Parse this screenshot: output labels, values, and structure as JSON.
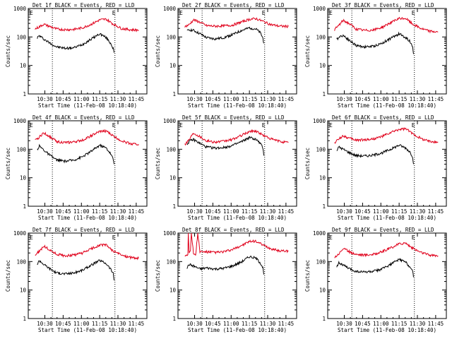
{
  "figure": {
    "start_time_prefix": "Start Time",
    "start_time_value": "(11-Feb-08 10:18:40)",
    "colors": {
      "events": "#000000",
      "lld": "#e0001b"
    }
  },
  "chart_data": [
    {
      "type": "line",
      "title": "Det 1f BLACK = Events, RED = LLD",
      "xlabel": "Start Time (11-Feb-08 10:18:40)",
      "ylabel": "Counts/sec",
      "yscale": "log",
      "ylim": [
        1,
        1000
      ],
      "xlim_minutes": [
        10.0,
        58.0
      ],
      "x_ticks": [
        "10:30",
        "10:45",
        "11:00",
        "11:15",
        "11:30",
        "11:45"
      ],
      "y_ticks": [
        "1",
        "10",
        "100",
        "1000"
      ],
      "markers_minutes": [
        18.0,
        47.0
      ],
      "flag_labels": [
        "E",
        "E"
      ],
      "series": [
        {
          "name": "Events",
          "x": [
            11,
            12,
            14,
            17,
            20,
            24,
            28,
            32,
            36,
            40,
            43,
            45,
            46.2,
            46.6
          ],
          "values": [
            95,
            110,
            85,
            60,
            45,
            40,
            42,
            55,
            85,
            130,
            95,
            60,
            40,
            28
          ]
        },
        {
          "name": "LLD",
          "x": [
            10,
            12,
            14,
            17,
            20,
            24,
            28,
            32,
            36,
            40,
            43,
            46,
            50,
            54,
            58
          ],
          "values": [
            190,
            230,
            280,
            230,
            190,
            180,
            185,
            210,
            280,
            400,
            420,
            290,
            200,
            180,
            175
          ]
        }
      ]
    },
    {
      "type": "line",
      "title": "Det 2f BLACK = Events, RED = LLD",
      "xlabel": "Start Time (11-Feb-08 10:18:40)",
      "ylabel": "Counts/sec",
      "yscale": "log",
      "ylim": [
        1,
        1000
      ],
      "xlim_minutes": [
        10.0,
        58.0
      ],
      "x_ticks": [
        "10:30",
        "10:45",
        "11:00",
        "11:15",
        "11:30",
        "11:45"
      ],
      "y_ticks": [
        "1",
        "10",
        "100",
        "1000"
      ],
      "markers_minutes": [
        18.0,
        47.0
      ],
      "flag_labels": [
        "E",
        "E"
      ],
      "series": [
        {
          "name": "Events",
          "x": [
            11,
            12,
            14,
            17,
            20,
            24,
            28,
            32,
            36,
            40,
            43,
            45,
            46.2,
            46.6
          ],
          "values": [
            160,
            180,
            170,
            130,
            95,
            85,
            95,
            120,
            165,
            210,
            190,
            140,
            90,
            60
          ]
        },
        {
          "name": "LLD",
          "x": [
            10,
            12,
            14,
            17,
            20,
            24,
            28,
            32,
            36,
            40,
            43,
            46,
            50,
            54,
            58
          ],
          "values": [
            230,
            270,
            400,
            330,
            250,
            240,
            245,
            260,
            330,
            420,
            440,
            360,
            270,
            240,
            235
          ]
        }
      ]
    },
    {
      "type": "line",
      "title": "Det 3f BLACK = Events, RED = LLD",
      "xlabel": "Start Time (11-Feb-08 10:18:40)",
      "ylabel": "Counts/sec",
      "yscale": "log",
      "ylim": [
        1,
        1000
      ],
      "xlim_minutes": [
        10.0,
        58.0
      ],
      "x_ticks": [
        "10:30",
        "10:45",
        "11:00",
        "11:15",
        "11:30",
        "11:45"
      ],
      "y_ticks": [
        "1",
        "10",
        "100",
        "1000"
      ],
      "markers_minutes": [
        18.0,
        47.0
      ],
      "flag_labels": [
        "E",
        "E"
      ],
      "series": [
        {
          "name": "Events",
          "x": [
            11,
            12,
            14,
            17,
            20,
            24,
            28,
            32,
            36,
            40,
            43,
            45,
            46.2,
            46.6
          ],
          "values": [
            80,
            100,
            115,
            75,
            50,
            45,
            47,
            60,
            90,
            130,
            95,
            70,
            45,
            25
          ]
        },
        {
          "name": "LLD",
          "x": [
            10,
            12,
            14,
            17,
            20,
            24,
            28,
            32,
            36,
            40,
            43,
            46,
            50,
            54,
            58
          ],
          "values": [
            180,
            260,
            380,
            290,
            190,
            170,
            175,
            220,
            320,
            440,
            450,
            290,
            200,
            160,
            150
          ]
        }
      ]
    },
    {
      "type": "line",
      "title": "Det 4f BLACK = Events, RED = LLD",
      "xlabel": "Start Time (11-Feb-08 10:18:40)",
      "ylabel": "Counts/sec",
      "yscale": "log",
      "ylim": [
        1,
        1000
      ],
      "xlim_minutes": [
        10.0,
        58.0
      ],
      "x_ticks": [
        "10:30",
        "10:45",
        "11:00",
        "11:15",
        "11:30",
        "11:45"
      ],
      "y_ticks": [
        "1",
        "10",
        "100",
        "1000"
      ],
      "markers_minutes": [
        18.0,
        47.0
      ],
      "flag_labels": [
        "E",
        "E"
      ],
      "series": [
        {
          "name": "Events",
          "x": [
            11,
            12,
            14,
            17,
            20,
            24,
            28,
            32,
            36,
            40,
            43,
            45,
            46.2,
            46.6
          ],
          "values": [
            100,
            130,
            95,
            60,
            42,
            38,
            42,
            55,
            85,
            140,
            110,
            70,
            45,
            30
          ]
        },
        {
          "name": "LLD",
          "x": [
            10,
            12,
            14,
            17,
            20,
            24,
            28,
            32,
            36,
            40,
            43,
            46,
            50,
            54,
            58
          ],
          "values": [
            200,
            270,
            380,
            270,
            190,
            170,
            180,
            210,
            300,
            420,
            440,
            300,
            200,
            160,
            150
          ]
        }
      ]
    },
    {
      "type": "line",
      "title": "Det 5f BLACK = Events, RED = LLD",
      "xlabel": "Start Time (11-Feb-08 10:18:40)",
      "ylabel": "Counts/sec",
      "yscale": "log",
      "ylim": [
        1,
        1000
      ],
      "xlim_minutes": [
        10.0,
        58.0
      ],
      "x_ticks": [
        "10:30",
        "10:45",
        "11:00",
        "11:15",
        "11:30",
        "11:45"
      ],
      "y_ticks": [
        "1",
        "10",
        "100",
        "1000"
      ],
      "markers_minutes": [
        18.0,
        47.0
      ],
      "flag_labels": [
        "E",
        "E"
      ],
      "series": [
        {
          "name": "Events",
          "x": [
            11,
            12,
            14,
            17,
            20,
            24,
            28,
            32,
            36,
            40,
            43,
            45,
            46.2,
            46.6
          ],
          "values": [
            150,
            190,
            220,
            160,
            120,
            110,
            115,
            135,
            180,
            260,
            220,
            160,
            110,
            60
          ]
        },
        {
          "name": "LLD",
          "x": [
            10,
            12,
            14,
            17,
            20,
            24,
            28,
            32,
            36,
            40,
            43,
            46,
            50,
            54,
            58
          ],
          "values": [
            150,
            220,
            380,
            280,
            200,
            180,
            190,
            220,
            300,
            420,
            440,
            320,
            230,
            190,
            170
          ]
        }
      ]
    },
    {
      "type": "line",
      "title": "Det 6f BLACK = Events, RED = LLD",
      "xlabel": "Start Time (11-Feb-08 10:18:40)",
      "ylabel": "Counts/sec",
      "yscale": "log",
      "ylim": [
        1,
        1000
      ],
      "xlim_minutes": [
        10.0,
        58.0
      ],
      "x_ticks": [
        "10:30",
        "10:45",
        "11:00",
        "11:15",
        "11:30",
        "11:45"
      ],
      "y_ticks": [
        "1",
        "10",
        "100",
        "1000"
      ],
      "markers_minutes": [
        18.0,
        47.0
      ],
      "flag_labels": [
        "E",
        "E"
      ],
      "series": [
        {
          "name": "Events",
          "x": [
            11,
            12,
            14,
            17,
            20,
            24,
            28,
            32,
            36,
            40,
            43,
            45,
            46.2,
            46.6
          ],
          "values": [
            90,
            120,
            100,
            75,
            60,
            58,
            62,
            75,
            100,
            140,
            110,
            80,
            55,
            30
          ]
        },
        {
          "name": "LLD",
          "x": [
            10,
            12,
            14,
            17,
            20,
            24,
            28,
            32,
            36,
            40,
            43,
            46,
            50,
            54,
            58
          ],
          "values": [
            170,
            230,
            300,
            240,
            210,
            215,
            230,
            280,
            380,
            500,
            520,
            360,
            240,
            190,
            180
          ]
        }
      ]
    },
    {
      "type": "line",
      "title": "Det 7f BLACK = Events, RED = LLD",
      "xlabel": "Start Time (11-Feb-08 10:18:40)",
      "ylabel": "Counts/sec",
      "yscale": "log",
      "ylim": [
        1,
        1000
      ],
      "xlim_minutes": [
        10.0,
        58.0
      ],
      "x_ticks": [
        "10:30",
        "10:45",
        "11:00",
        "11:15",
        "11:30",
        "11:45"
      ],
      "y_ticks": [
        "1",
        "10",
        "100",
        "1000"
      ],
      "markers_minutes": [
        18.0,
        47.0
      ],
      "flag_labels": [
        "E",
        "E"
      ],
      "series": [
        {
          "name": "Events",
          "x": [
            11,
            12,
            14,
            17,
            20,
            24,
            28,
            32,
            36,
            40,
            43,
            45,
            46.2,
            46.6
          ],
          "values": [
            80,
            110,
            80,
            55,
            40,
            37,
            40,
            50,
            75,
            110,
            85,
            55,
            38,
            22
          ]
        },
        {
          "name": "LLD",
          "x": [
            10,
            12,
            14,
            17,
            20,
            24,
            28,
            32,
            36,
            40,
            43,
            46,
            50,
            54,
            58
          ],
          "values": [
            170,
            230,
            350,
            250,
            180,
            160,
            170,
            200,
            280,
            380,
            380,
            240,
            170,
            140,
            130
          ]
        }
      ]
    },
    {
      "type": "line",
      "title": "Det 8f BLACK = Events, RED = LLD",
      "xlabel": "Start Time (11-Feb-08 10:18:40)",
      "ylabel": "Counts/sec",
      "yscale": "log",
      "ylim": [
        1,
        1000
      ],
      "xlim_minutes": [
        10.0,
        58.0
      ],
      "x_ticks": [
        "10:30",
        "10:45",
        "11:00",
        "11:15",
        "11:30",
        "11:45"
      ],
      "y_ticks": [
        "1",
        "10",
        "100",
        "1000"
      ],
      "markers_minutes": [
        18.0,
        47.0
      ],
      "flag_labels": [
        "",
        ""
      ],
      "series": [
        {
          "name": "Events",
          "x": [
            11,
            12,
            14,
            17,
            20,
            24,
            28,
            32,
            36,
            40,
            43,
            45,
            46.2,
            46.6
          ],
          "values": [
            60,
            80,
            70,
            55,
            60,
            55,
            58,
            70,
            95,
            150,
            130,
            90,
            60,
            35
          ]
        },
        {
          "name": "LLD",
          "x": [
            10,
            11.4,
            11.6,
            12,
            12.6,
            13,
            14,
            14.6,
            15,
            16,
            17,
            20,
            24,
            28,
            32,
            36,
            40,
            43,
            46,
            50,
            54,
            58
          ],
          "values": [
            160,
            180,
            1000,
            220,
            260,
            1000,
            200,
            170,
            170,
            1000,
            220,
            220,
            210,
            220,
            260,
            360,
            500,
            520,
            380,
            280,
            240,
            230
          ]
        }
      ]
    },
    {
      "type": "line",
      "title": "Det 9f BLACK = Events, RED = LLD",
      "xlabel": "Start Time (11-Feb-08 10:18:40)",
      "ylabel": "Counts/sec",
      "yscale": "log",
      "ylim": [
        1,
        1000
      ],
      "xlim_minutes": [
        10.0,
        58.0
      ],
      "x_ticks": [
        "10:30",
        "10:45",
        "11:00",
        "11:15",
        "11:30",
        "11:45"
      ],
      "y_ticks": [
        "1",
        "10",
        "100",
        "1000"
      ],
      "markers_minutes": [
        18.0,
        47.0
      ],
      "flag_labels": [
        "E",
        "E"
      ],
      "series": [
        {
          "name": "Events",
          "x": [
            11,
            12,
            14,
            17,
            20,
            24,
            28,
            32,
            36,
            40,
            43,
            45,
            46.2,
            46.6
          ],
          "values": [
            70,
            90,
            75,
            55,
            45,
            43,
            45,
            55,
            80,
            120,
            95,
            65,
            45,
            28
          ]
        },
        {
          "name": "LLD",
          "x": [
            10,
            12,
            14,
            17,
            20,
            24,
            28,
            32,
            36,
            40,
            43,
            46,
            50,
            54,
            58
          ],
          "values": [
            140,
            190,
            290,
            220,
            180,
            170,
            180,
            220,
            300,
            420,
            450,
            300,
            210,
            170,
            160
          ]
        }
      ]
    }
  ]
}
